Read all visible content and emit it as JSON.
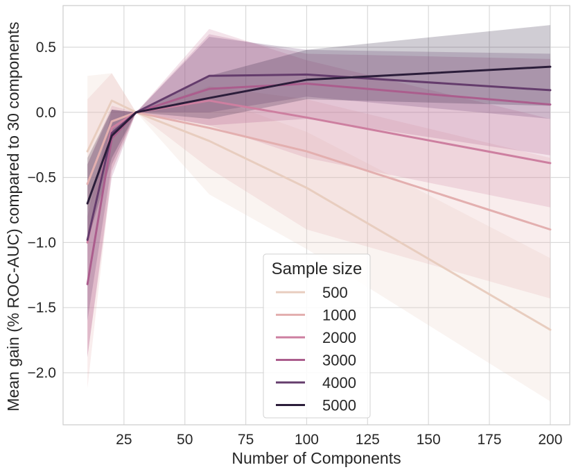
{
  "chart_data": {
    "type": "line",
    "title": "",
    "xlabel": "Number of Components",
    "ylabel": "Mean gain (% ROC-AUC) compared to 30 components",
    "x": [
      10,
      20,
      30,
      60,
      100,
      200
    ],
    "xlim": [
      0,
      208
    ],
    "ylim": [
      -2.4,
      0.82
    ],
    "xticks": [
      25,
      50,
      75,
      100,
      125,
      150,
      175,
      200
    ],
    "yticks": [
      0.5,
      0.0,
      -0.5,
      -1.0,
      -1.5,
      -2.0
    ],
    "ytick_labels": [
      "0.5",
      "0.0",
      "−0.5",
      "−1.0",
      "−1.5",
      "−2.0"
    ],
    "grid": true,
    "legend": {
      "title": "Sample size",
      "position": "lower-center"
    },
    "series": [
      {
        "name": "500",
        "color": "#e8cdbf",
        "values": [
          -0.3,
          0.09,
          0.0,
          -0.22,
          -0.58,
          -1.67
        ],
        "lower": [
          -0.75,
          -0.4,
          0.0,
          -0.63,
          -1.05,
          -2.22
        ],
        "upper": [
          0.28,
          0.3,
          0.0,
          0.12,
          -0.15,
          -1.12
        ]
      },
      {
        "name": "1000",
        "color": "#e3afaf",
        "values": [
          -0.55,
          -0.07,
          0.0,
          -0.12,
          -0.3,
          -0.9
        ],
        "lower": [
          -2.12,
          -0.45,
          0.0,
          -0.43,
          -0.9,
          -1.43
        ],
        "upper": [
          0.1,
          0.3,
          0.0,
          0.2,
          0.1,
          -0.35
        ]
      },
      {
        "name": "2000",
        "color": "#cd7fa0",
        "values": [
          -1.0,
          -0.12,
          0.0,
          0.09,
          -0.04,
          -0.39
        ],
        "lower": [
          -1.88,
          -0.45,
          0.0,
          -0.1,
          -0.35,
          -0.73
        ],
        "upper": [
          -0.4,
          0.05,
          0.0,
          0.64,
          0.4,
          -0.05
        ]
      },
      {
        "name": "3000",
        "color": "#ab5d8d",
        "values": [
          -1.32,
          -0.2,
          0.0,
          0.18,
          0.22,
          0.06
        ],
        "lower": [
          -1.88,
          -0.5,
          0.0,
          -0.1,
          -0.05,
          -0.33
        ],
        "upper": [
          -0.8,
          0.02,
          0.0,
          0.6,
          0.45,
          0.41
        ]
      },
      {
        "name": "4000",
        "color": "#643c6c",
        "values": [
          -0.98,
          -0.16,
          0.0,
          0.28,
          0.29,
          0.17
        ],
        "lower": [
          -1.6,
          -0.4,
          0.0,
          0.0,
          0.12,
          -0.05
        ],
        "upper": [
          -0.4,
          0.02,
          0.0,
          0.58,
          0.48,
          0.45
        ]
      },
      {
        "name": "5000",
        "color": "#2b1d3a",
        "values": [
          -0.7,
          -0.18,
          0.0,
          0.11,
          0.25,
          0.35
        ],
        "lower": [
          -1.0,
          -0.35,
          0.0,
          -0.05,
          0.1,
          0.05
        ],
        "upper": [
          -0.35,
          0.02,
          0.0,
          0.28,
          0.48,
          0.67
        ]
      }
    ]
  }
}
